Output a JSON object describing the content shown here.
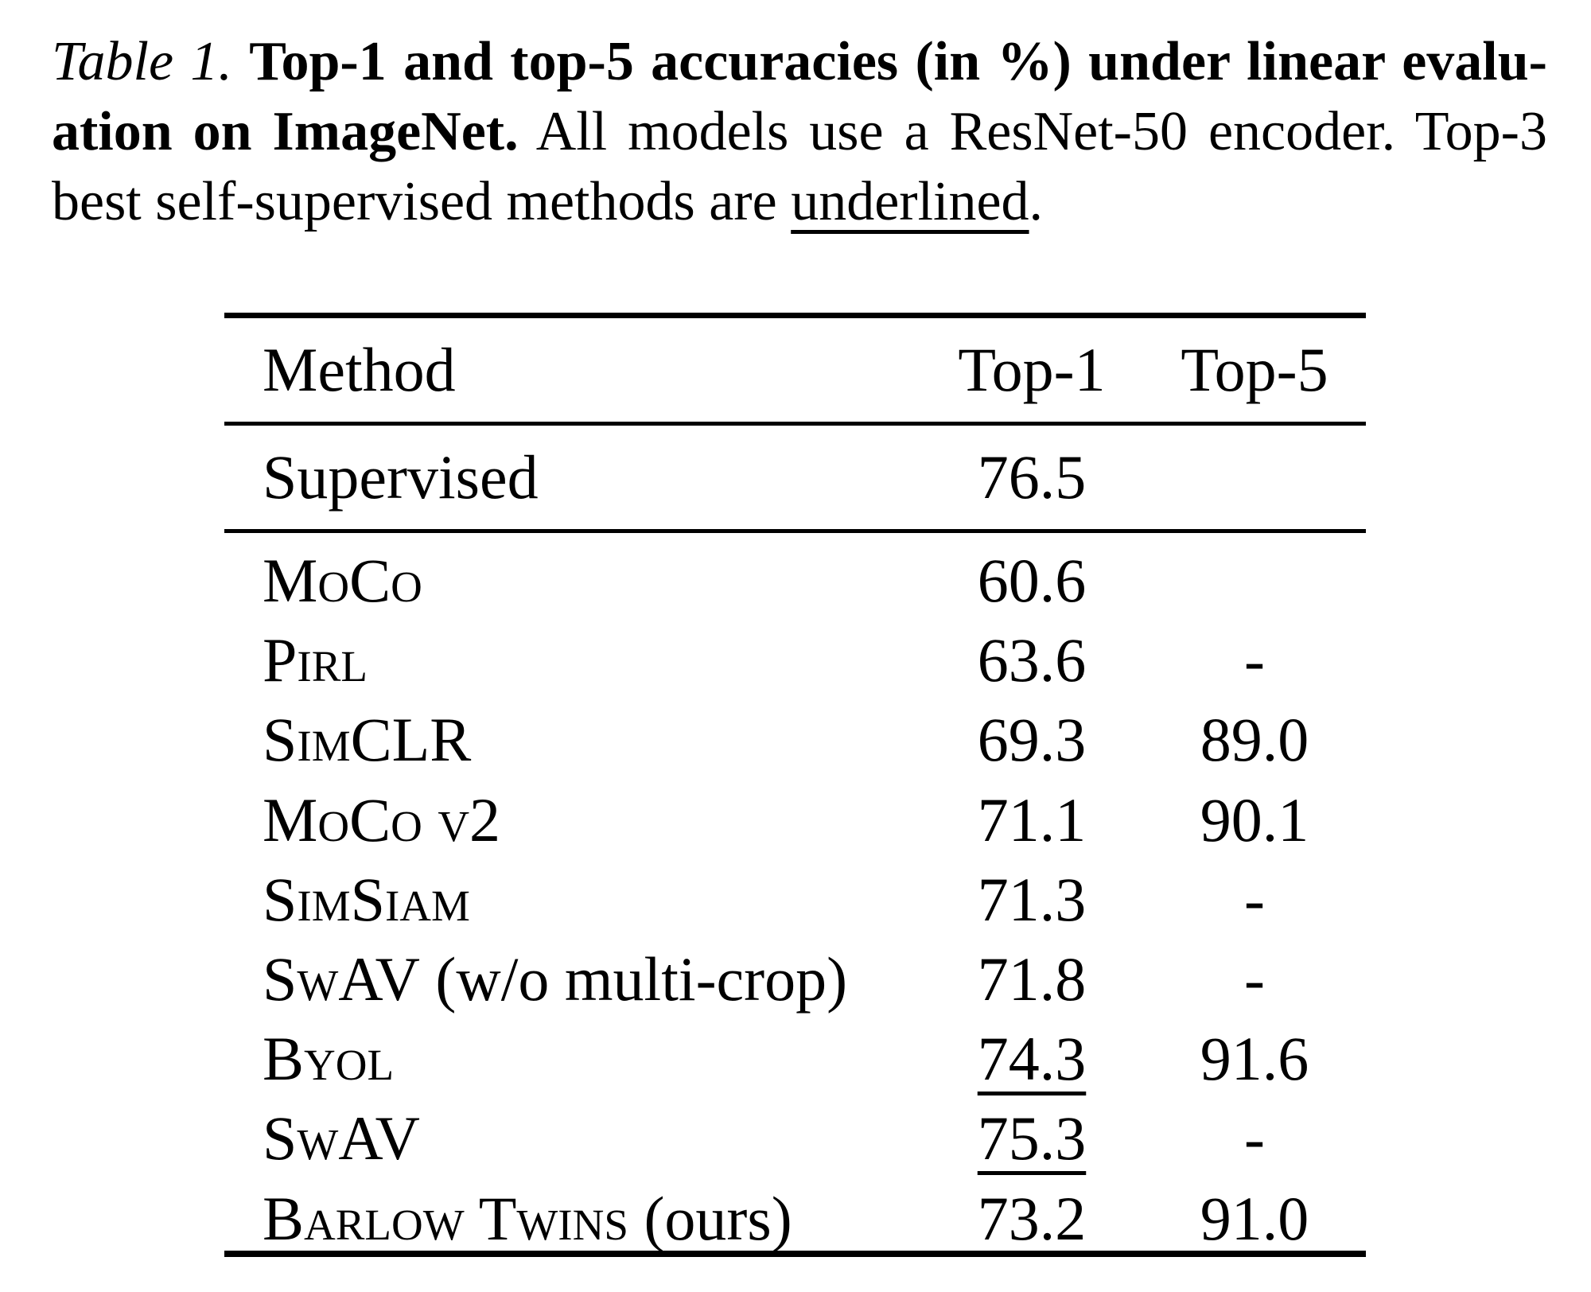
{
  "page": {
    "background": "#ffffff",
    "text_color": "#000000"
  },
  "caption": {
    "label_italic": "Table 1. ",
    "line1_bold": "Top-1 and top-5 accuracies (in %) under linear evalu-",
    "line2_bold": "ation on ImageNet.",
    "line2_regular": " All models use a ResNet-50 encoder. Top-3",
    "line3_regular": "best self-supervised methods are ",
    "line3_underlined_word": "underlined",
    "line3_period": "."
  },
  "table": {
    "headers": [
      "Method",
      "Top-1",
      "Top-5"
    ],
    "supervised_row": {
      "method": "Supervised",
      "top1": "76.5",
      "top5": ""
    },
    "rows": [
      {
        "sc": "MoCo",
        "plain": "",
        "top1": "60.6",
        "top1_underlined": false,
        "top5": ""
      },
      {
        "sc": "Pirl",
        "plain": "",
        "top1": "63.6",
        "top1_underlined": false,
        "top5": "-"
      },
      {
        "sc": "SimCLR",
        "plain": "",
        "top1": "69.3",
        "top1_underlined": false,
        "top5": "89.0"
      },
      {
        "sc": "MoCo v2",
        "plain": "",
        "top1": "71.1",
        "top1_underlined": false,
        "top5": "90.1"
      },
      {
        "sc": "SimSiam",
        "plain": "",
        "top1": "71.3",
        "top1_underlined": false,
        "top5": "-"
      },
      {
        "sc": "SwAV",
        "plain": " (w/o multi-crop)",
        "top1": "71.8",
        "top1_underlined": false,
        "top5": "-"
      },
      {
        "sc": "Byol",
        "plain": "",
        "top1": "74.3",
        "top1_underlined": true,
        "top5": "91.6"
      },
      {
        "sc": "SwAV",
        "plain": "",
        "top1": "75.3",
        "top1_underlined": true,
        "top5": "-"
      },
      {
        "sc": "Barlow Twins",
        "plain": " (ours)",
        "top1": "73.2",
        "top1_underlined": true,
        "top5": "91.0"
      }
    ]
  }
}
